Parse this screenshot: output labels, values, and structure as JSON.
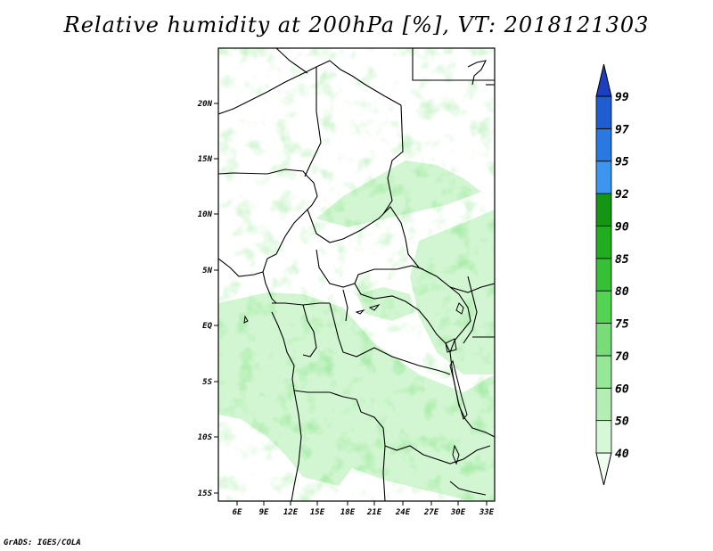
{
  "title": "Relative humidity at 200hPa [%], VT: 2018121303",
  "footer": "GrADS: IGES/COLA",
  "map": {
    "lon_labels": [
      "6E",
      "9E",
      "12E",
      "15E",
      "18E",
      "21E",
      "24E",
      "27E",
      "30E",
      "33E"
    ],
    "lat_labels": [
      "20N",
      "15N",
      "10N",
      "5N",
      "EQ",
      "5S",
      "10S",
      "15S"
    ],
    "lon_range": [
      3,
      34
    ],
    "lat_range": [
      -16,
      25
    ],
    "boundary_color": "#000000",
    "field": "relative humidity at 200hPa"
  },
  "colorbar": {
    "levels": [
      "40",
      "50",
      "60",
      "70",
      "75",
      "80",
      "85",
      "90",
      "92",
      "95",
      "97",
      "99"
    ],
    "colors": [
      "#f0fcf0",
      "#d6f8d6",
      "#b4eeb4",
      "#96e796",
      "#78dc78",
      "#52d452",
      "#35c035",
      "#20ae20",
      "#149614",
      "#3c96f0",
      "#2a78e2",
      "#1e5ed0",
      "#1c3ec0"
    ],
    "extend": "both"
  }
}
